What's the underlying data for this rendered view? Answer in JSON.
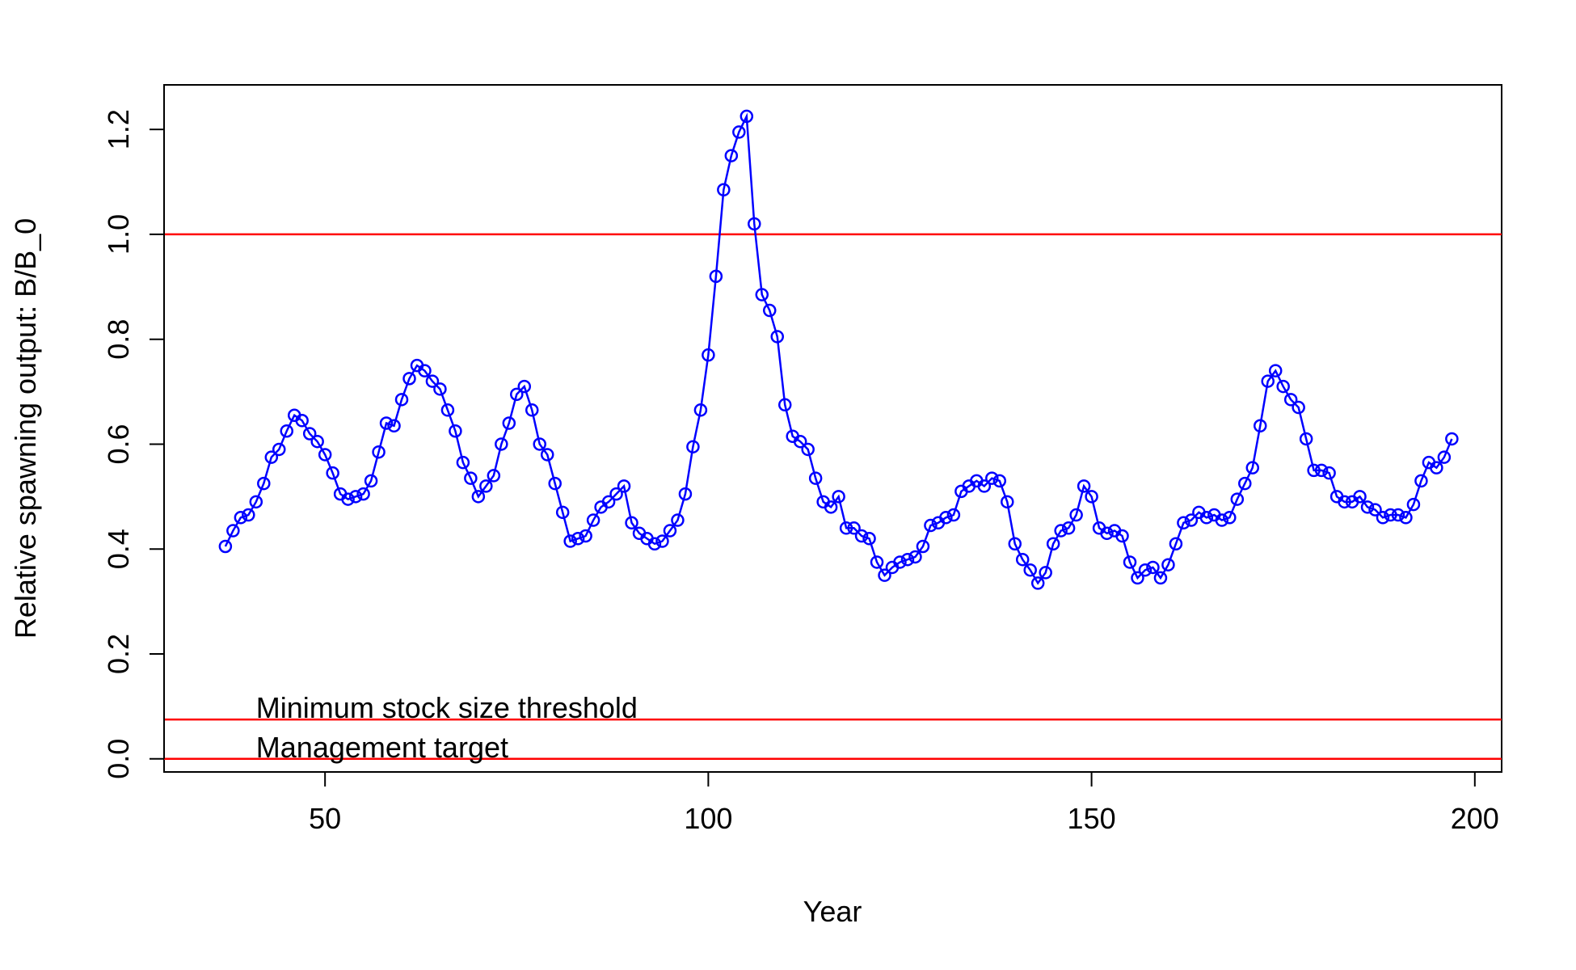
{
  "chart_data": {
    "type": "line",
    "xlabel": "Year",
    "ylabel": "Relative spawning output: B/B_0",
    "xlim": [
      29,
      203.5
    ],
    "ylim": [
      -0.025,
      1.285
    ],
    "xticks": [
      50,
      100,
      150,
      200
    ],
    "yticks": [
      0.0,
      0.2,
      0.4,
      0.6,
      0.8,
      1.0,
      1.2
    ],
    "xtick_labels": [
      "50",
      "100",
      "150",
      "200"
    ],
    "ytick_labels": [
      "0.0",
      "0.2",
      "0.4",
      "0.6",
      "0.8",
      "1.0",
      "1.2"
    ],
    "grid": false,
    "series": [
      {
        "color": "#0000ff",
        "marker": "open-circle",
        "x": [
          37,
          38,
          39,
          40,
          41,
          42,
          43,
          44,
          45,
          46,
          47,
          48,
          49,
          50,
          51,
          52,
          53,
          54,
          55,
          56,
          57,
          58,
          59,
          60,
          61,
          62,
          63,
          64,
          65,
          66,
          67,
          68,
          69,
          70,
          71,
          72,
          73,
          74,
          75,
          76,
          77,
          78,
          79,
          80,
          81,
          82,
          83,
          84,
          85,
          86,
          87,
          88,
          89,
          90,
          91,
          92,
          93,
          94,
          95,
          96,
          97,
          98,
          99,
          100,
          101,
          102,
          103,
          104,
          105,
          106,
          107,
          108,
          109,
          110,
          111,
          112,
          113,
          114,
          115,
          116,
          117,
          118,
          119,
          120,
          121,
          122,
          123,
          124,
          125,
          126,
          127,
          128,
          129,
          130,
          131,
          132,
          133,
          134,
          135,
          136,
          137,
          138,
          139,
          140,
          141,
          142,
          143,
          144,
          145,
          146,
          147,
          148,
          149,
          150,
          151,
          152,
          153,
          154,
          155,
          156,
          157,
          158,
          159,
          160,
          161,
          162,
          163,
          164,
          165,
          166,
          167,
          168,
          169,
          170,
          171,
          172,
          173,
          174,
          175,
          176,
          177,
          178,
          179,
          180,
          181,
          182,
          183,
          184,
          185,
          186,
          187,
          188,
          189,
          190,
          191,
          192,
          193,
          194,
          195,
          196,
          197
        ],
        "y": [
          0.405,
          0.435,
          0.46,
          0.465,
          0.49,
          0.525,
          0.575,
          0.59,
          0.625,
          0.655,
          0.645,
          0.62,
          0.605,
          0.58,
          0.545,
          0.505,
          0.495,
          0.5,
          0.505,
          0.53,
          0.585,
          0.64,
          0.635,
          0.685,
          0.725,
          0.75,
          0.74,
          0.72,
          0.705,
          0.665,
          0.625,
          0.565,
          0.535,
          0.5,
          0.52,
          0.54,
          0.6,
          0.64,
          0.695,
          0.71,
          0.665,
          0.6,
          0.58,
          0.525,
          0.47,
          0.415,
          0.42,
          0.425,
          0.455,
          0.48,
          0.49,
          0.505,
          0.52,
          0.45,
          0.43,
          0.42,
          0.41,
          0.415,
          0.435,
          0.455,
          0.505,
          0.595,
          0.665,
          0.77,
          0.92,
          1.085,
          1.15,
          1.195,
          1.225,
          1.02,
          0.885,
          0.855,
          0.805,
          0.675,
          0.615,
          0.605,
          0.59,
          0.535,
          0.49,
          0.48,
          0.5,
          0.44,
          0.44,
          0.425,
          0.42,
          0.375,
          0.35,
          0.365,
          0.375,
          0.38,
          0.385,
          0.405,
          0.445,
          0.45,
          0.46,
          0.465,
          0.51,
          0.52,
          0.53,
          0.52,
          0.535,
          0.53,
          0.49,
          0.41,
          0.38,
          0.36,
          0.335,
          0.355,
          0.41,
          0.435,
          0.44,
          0.465,
          0.52,
          0.5,
          0.44,
          0.43,
          0.435,
          0.425,
          0.375,
          0.345,
          0.36,
          0.365,
          0.345,
          0.37,
          0.41,
          0.45,
          0.455,
          0.47,
          0.46,
          0.465,
          0.455,
          0.46,
          0.495,
          0.525,
          0.555,
          0.635,
          0.72,
          0.74,
          0.71,
          0.685,
          0.67,
          0.61,
          0.55,
          0.55,
          0.545,
          0.5,
          0.49,
          0.49,
          0.5,
          0.48,
          0.475,
          0.46,
          0.465,
          0.465,
          0.46,
          0.485,
          0.53,
          0.565,
          0.555,
          0.575,
          0.61
        ]
      }
    ],
    "reference_lines": [
      {
        "y": 1.0,
        "color": "#ff0000"
      },
      {
        "y": 0.075,
        "color": "#ff0000",
        "label": "Minimum stock size threshold",
        "label_x": 41
      },
      {
        "y": 0.0,
        "color": "#ff0000",
        "label": "Management target",
        "label_x": 41
      }
    ]
  }
}
